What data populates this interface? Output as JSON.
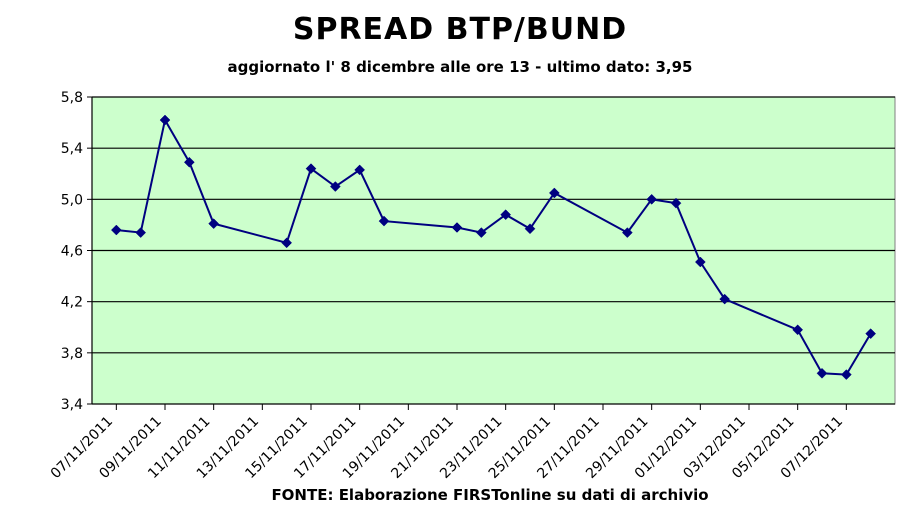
{
  "title": "SPREAD BTP/BUND",
  "subtitle": "aggiornato l' 8 dicembre alle ore 13 - ultimo dato: 3,95",
  "source": "FONTE: Elaborazione FIRSTonline su dati di archivio",
  "colors": {
    "plot_bg": "#ccffcc",
    "line": "#000080",
    "marker": "#000080",
    "grid": "#000000"
  },
  "chart_data": {
    "type": "line",
    "title": "SPREAD BTP/BUND",
    "xlabel": "",
    "ylabel": "",
    "ylim": [
      3.4,
      5.8
    ],
    "yticks": [
      "3,4",
      "3,8",
      "4,2",
      "4,6",
      "5,0",
      "5,4",
      "5,8"
    ],
    "grid": true,
    "x_tick_labels": [
      "07/11/2011",
      "09/11/2011",
      "11/11/2011",
      "13/11/2011",
      "15/11/2011",
      "17/11/2011",
      "19/11/2011",
      "21/11/2011",
      "23/11/2011",
      "25/11/2011",
      "27/11/2011",
      "29/11/2011",
      "01/12/2011",
      "03/12/2011",
      "05/12/2011",
      "07/12/2011"
    ],
    "series": [
      {
        "x": [
          "2011-11-07",
          "2011-11-08",
          "2011-11-09",
          "2011-11-10",
          "2011-11-11",
          "2011-11-14",
          "2011-11-15",
          "2011-11-16",
          "2011-11-17",
          "2011-11-18",
          "2011-11-21",
          "2011-11-22",
          "2011-11-23",
          "2011-11-24",
          "2011-11-25",
          "2011-11-28",
          "2011-11-29",
          "2011-11-30",
          "2011-12-01",
          "2011-12-02",
          "2011-12-05",
          "2011-12-06",
          "2011-12-07",
          "2011-12-08"
        ],
        "values": [
          4.76,
          4.74,
          5.62,
          5.29,
          4.81,
          4.66,
          5.24,
          5.1,
          5.23,
          4.83,
          4.78,
          4.74,
          4.88,
          4.77,
          5.05,
          4.74,
          5.0,
          4.97,
          4.51,
          4.22,
          3.98,
          3.64,
          3.63,
          3.95
        ]
      }
    ]
  }
}
